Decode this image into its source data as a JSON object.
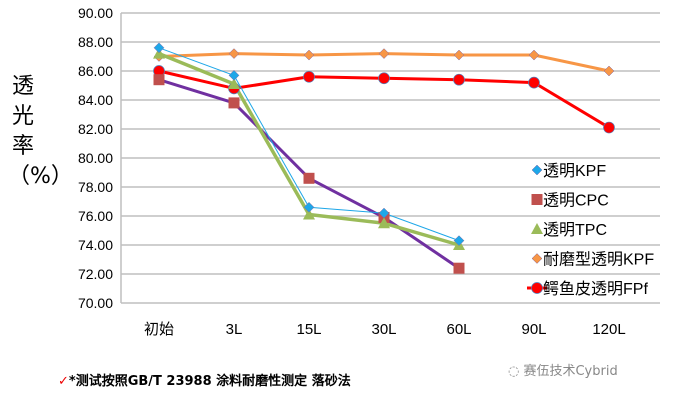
{
  "chart_data": {
    "type": "line",
    "ylabel": "透光率（%）",
    "ylim": [
      70,
      90
    ],
    "yticks": [
      "70.00",
      "72.00",
      "74.00",
      "76.00",
      "78.00",
      "80.00",
      "82.00",
      "84.00",
      "86.00",
      "88.00",
      "90.00"
    ],
    "categories": [
      "初始",
      "3L",
      "15L",
      "30L",
      "60L",
      "90L",
      "120L"
    ],
    "grid": true,
    "legend": "right",
    "series": [
      {
        "name": "透明KPF",
        "color": "#1ea7e8",
        "marker": "diamond",
        "width": 1,
        "values": [
          87.6,
          85.7,
          76.6,
          76.2,
          74.3,
          null,
          null
        ]
      },
      {
        "name": "透明CPC",
        "color": "#7030a0",
        "markerColor": "#c0504d",
        "marker": "square",
        "width": 3,
        "values": [
          85.4,
          83.8,
          78.6,
          75.9,
          72.4,
          null,
          null
        ]
      },
      {
        "name": "透明TPC",
        "color": "#9bbb59",
        "marker": "triangle",
        "width": 3.5,
        "values": [
          87.2,
          85.1,
          76.1,
          75.5,
          74.0,
          null,
          null
        ]
      },
      {
        "name": "耐磨型透明KPF",
        "color": "#f79646",
        "marker": "diamond",
        "width": 3,
        "values": [
          87.0,
          87.2,
          87.1,
          87.2,
          87.1,
          87.1,
          86.0
        ]
      },
      {
        "name": "鳄鱼皮透明FPf",
        "color": "#ff0000",
        "marker": "circle",
        "width": 3,
        "values": [
          86.0,
          84.8,
          85.6,
          85.5,
          85.4,
          85.2,
          82.1
        ]
      }
    ]
  },
  "footnote": {
    "check": "✓",
    "text": "*测试按照GB/T 23988 涂料耐磨性测定 落砂法"
  },
  "watermark": "赛伍技术Cybrid"
}
